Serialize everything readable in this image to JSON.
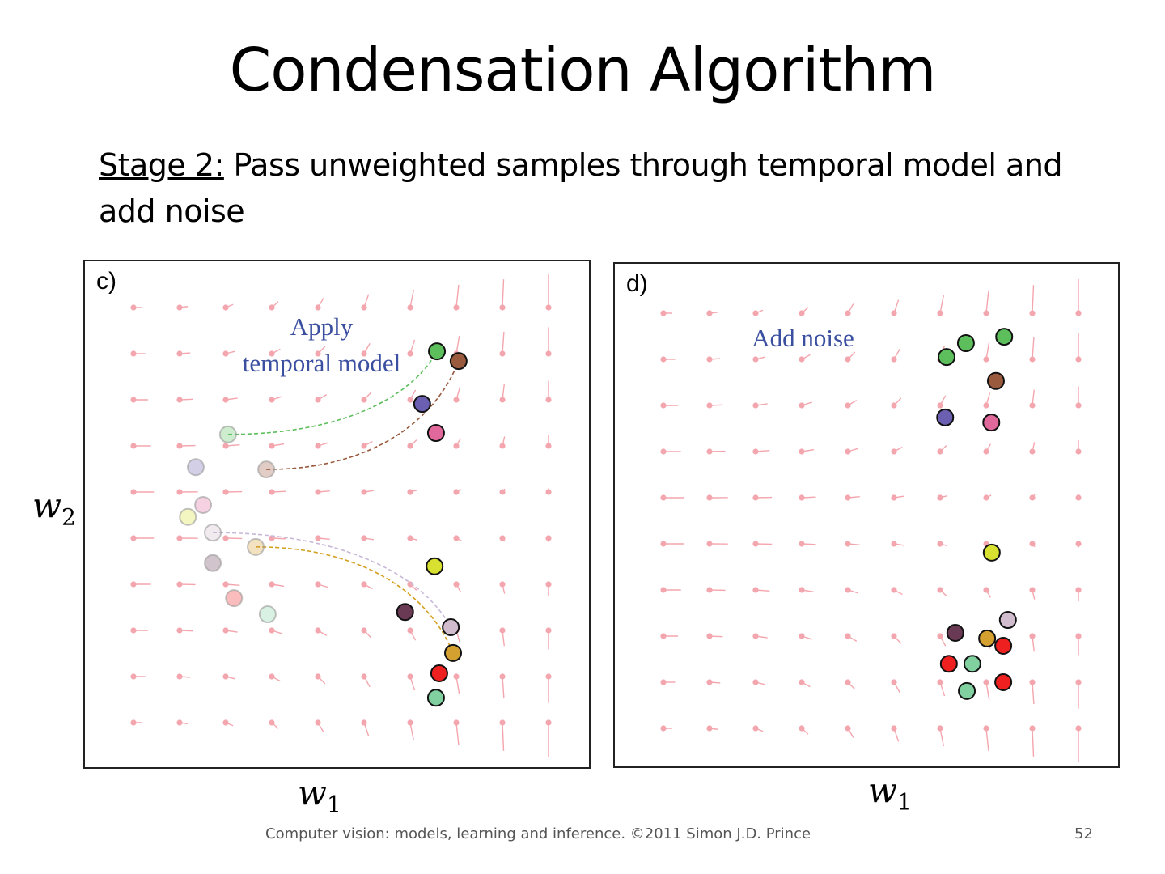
{
  "slide": {
    "title": "Condensation Algorithm",
    "stage_label": "Stage 2:",
    "stage_text": " Pass unweighted samples through temporal model and add noise",
    "footer": "Computer vision: models, learning and inference.  ©2011 Simon J.D. Prince",
    "page_number": "52"
  },
  "axes": {
    "x_var": "w",
    "x_sub": "1",
    "y_var": "w",
    "y_sub": "2"
  },
  "chart_data": [
    {
      "type": "scatter",
      "panel_label": "c)",
      "annotation_line1": "Apply",
      "annotation_line2": "temporal model",
      "xlabel": "w1",
      "ylabel": "w2",
      "xlim": [
        0,
        9
      ],
      "ylim": [
        0,
        9
      ],
      "grid_of_vectors": "10x10",
      "faded_particles": [
        {
          "w1": 2.05,
          "w2": 6.25,
          "color": "#5cbf5c"
        },
        {
          "w1": 2.88,
          "w2": 5.49,
          "color": "#9a5a3e"
        },
        {
          "w1": 1.35,
          "w2": 5.54,
          "color": "#6a5fb0"
        },
        {
          "w1": 1.51,
          "w2": 4.72,
          "color": "#e0689a"
        },
        {
          "w1": 1.18,
          "w2": 4.46,
          "color": "#d8e030"
        },
        {
          "w1": 1.72,
          "w2": 4.12,
          "color": "#d0bccc"
        },
        {
          "w1": 2.65,
          "w2": 3.81,
          "color": "#d4a030"
        },
        {
          "w1": 1.72,
          "w2": 3.46,
          "color": "#6a3a55"
        },
        {
          "w1": 2.18,
          "w2": 2.7,
          "color": "#ee2020"
        },
        {
          "w1": 2.91,
          "w2": 2.35,
          "color": "#80d0a0"
        }
      ],
      "particles": [
        {
          "w1": 6.58,
          "w2": 8.05,
          "color": "#5cbf5c"
        },
        {
          "w1": 7.05,
          "w2": 7.84,
          "color": "#9a5a3e"
        },
        {
          "w1": 6.26,
          "w2": 6.91,
          "color": "#6a5fb0"
        },
        {
          "w1": 6.56,
          "w2": 6.28,
          "color": "#e0689a"
        },
        {
          "w1": 6.53,
          "w2": 3.39,
          "color": "#d8e030"
        },
        {
          "w1": 5.89,
          "w2": 2.4,
          "color": "#6a3a55"
        },
        {
          "w1": 6.88,
          "w2": 2.07,
          "color": "#d0bccc"
        },
        {
          "w1": 6.93,
          "w2": 1.51,
          "color": "#d4a030"
        },
        {
          "w1": 6.63,
          "w2": 1.07,
          "color": "#ee2020"
        },
        {
          "w1": 6.56,
          "w2": 0.54,
          "color": "#80d0a0"
        }
      ],
      "trajectories": [
        {
          "from": [
            2.05,
            6.25
          ],
          "to": [
            6.58,
            8.05
          ],
          "color": "#5cbf5c"
        },
        {
          "from": [
            2.88,
            5.49
          ],
          "to": [
            7.05,
            7.84
          ],
          "color": "#9a5a3e"
        },
        {
          "from": [
            1.72,
            4.12
          ],
          "to": [
            6.88,
            2.07
          ],
          "color": "#c8b8d8"
        },
        {
          "from": [
            2.65,
            3.81
          ],
          "to": [
            6.93,
            1.51
          ],
          "color": "#d4a020"
        }
      ]
    },
    {
      "type": "scatter",
      "panel_label": "d)",
      "annotation_line1": "Add noise",
      "xlabel": "w1",
      "ylabel": "",
      "xlim": [
        0,
        9
      ],
      "ylim": [
        0,
        9
      ],
      "grid_of_vectors": "10x10",
      "particles": [
        {
          "w1": 6.14,
          "w2": 8.05,
          "color": "#5cbf5c"
        },
        {
          "w1": 6.56,
          "w2": 8.35,
          "color": "#5cbf5c"
        },
        {
          "w1": 7.39,
          "w2": 8.49,
          "color": "#5cbf5c"
        },
        {
          "w1": 7.21,
          "w2": 7.53,
          "color": "#9a5a3e"
        },
        {
          "w1": 6.11,
          "w2": 6.74,
          "color": "#6a5fb0"
        },
        {
          "w1": 7.11,
          "w2": 6.63,
          "color": "#e0689a"
        },
        {
          "w1": 7.12,
          "w2": 3.81,
          "color": "#d8e030"
        },
        {
          "w1": 7.47,
          "w2": 2.35,
          "color": "#d0bccc"
        },
        {
          "w1": 6.33,
          "w2": 2.07,
          "color": "#6a3a55"
        },
        {
          "w1": 7.02,
          "w2": 1.95,
          "color": "#d4a030"
        },
        {
          "w1": 7.37,
          "w2": 1.79,
          "color": "#ee2020"
        },
        {
          "w1": 6.19,
          "w2": 1.4,
          "color": "#ee2020"
        },
        {
          "w1": 6.7,
          "w2": 1.4,
          "color": "#80d0a0"
        },
        {
          "w1": 7.37,
          "w2": 1.0,
          "color": "#ee2020"
        },
        {
          "w1": 6.58,
          "w2": 0.81,
          "color": "#80d0a0"
        }
      ]
    }
  ],
  "colors": {
    "vector_field": "#f4a6ae",
    "annotation": "#3b4fa0"
  }
}
